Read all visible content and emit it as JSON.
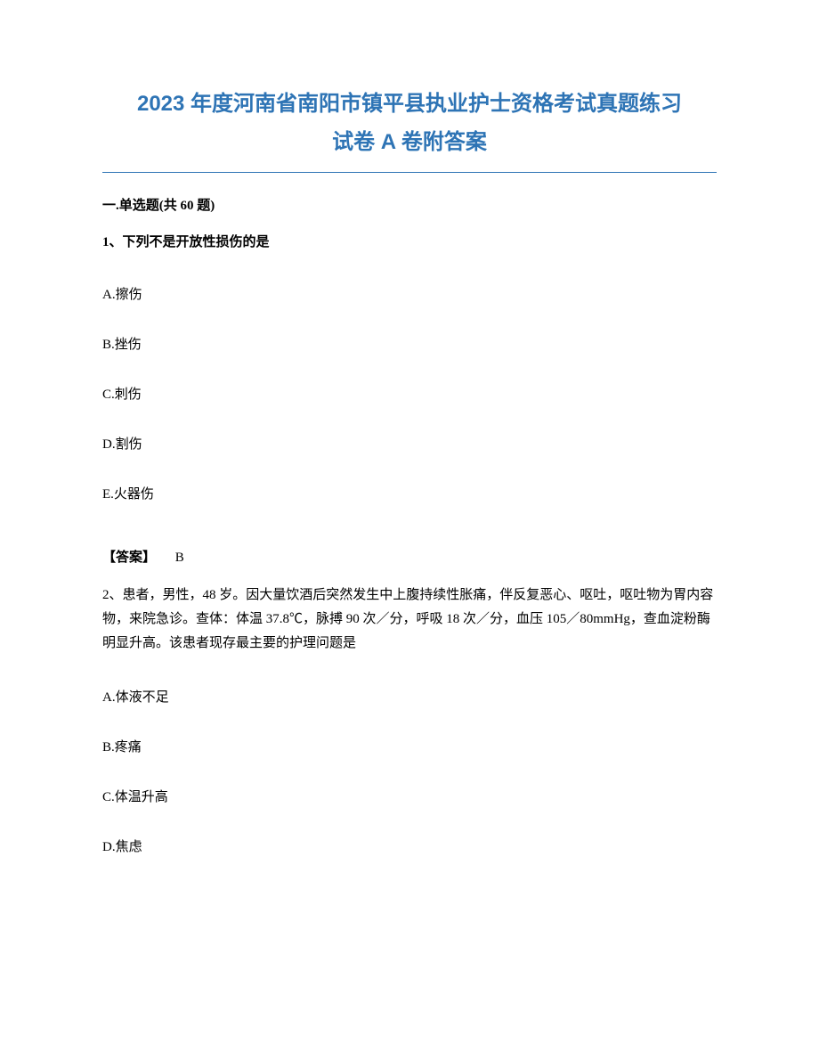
{
  "title": {
    "line1": "2023 年度河南省南阳市镇平县执业护士资格考试真题练习",
    "line2": "试卷 A 卷附答案",
    "color": "#2e74b5",
    "fontsize": 24
  },
  "divider": {
    "color": "#2e74b5"
  },
  "section_header": "一.单选题(共 60 题)",
  "question1": {
    "stem": "1、下列不是开放性损伤的是",
    "options": {
      "A": "A.擦伤",
      "B": "B.挫伤",
      "C": "C.刺伤",
      "D": "D.割伤",
      "E": "E.火器伤"
    },
    "answer_label": "【答案】",
    "answer_value": "B"
  },
  "question2": {
    "stem": "2、患者，男性，48 岁。因大量饮酒后突然发生中上腹持续性胀痛，伴反复恶心、呕吐，呕吐物为胃内容物，来院急诊。查体：体温 37.8℃，脉搏 90 次／分，呼吸 18 次／分，血压 105／80mmHg，查血淀粉酶明显升高。该患者现存最主要的护理问题是",
    "options": {
      "A": "A.体液不足",
      "B": "B.疼痛",
      "C": "C.体温升高",
      "D": "D.焦虑"
    }
  },
  "typography": {
    "body_fontsize": 15,
    "body_color": "#000000",
    "background_color": "#ffffff"
  }
}
